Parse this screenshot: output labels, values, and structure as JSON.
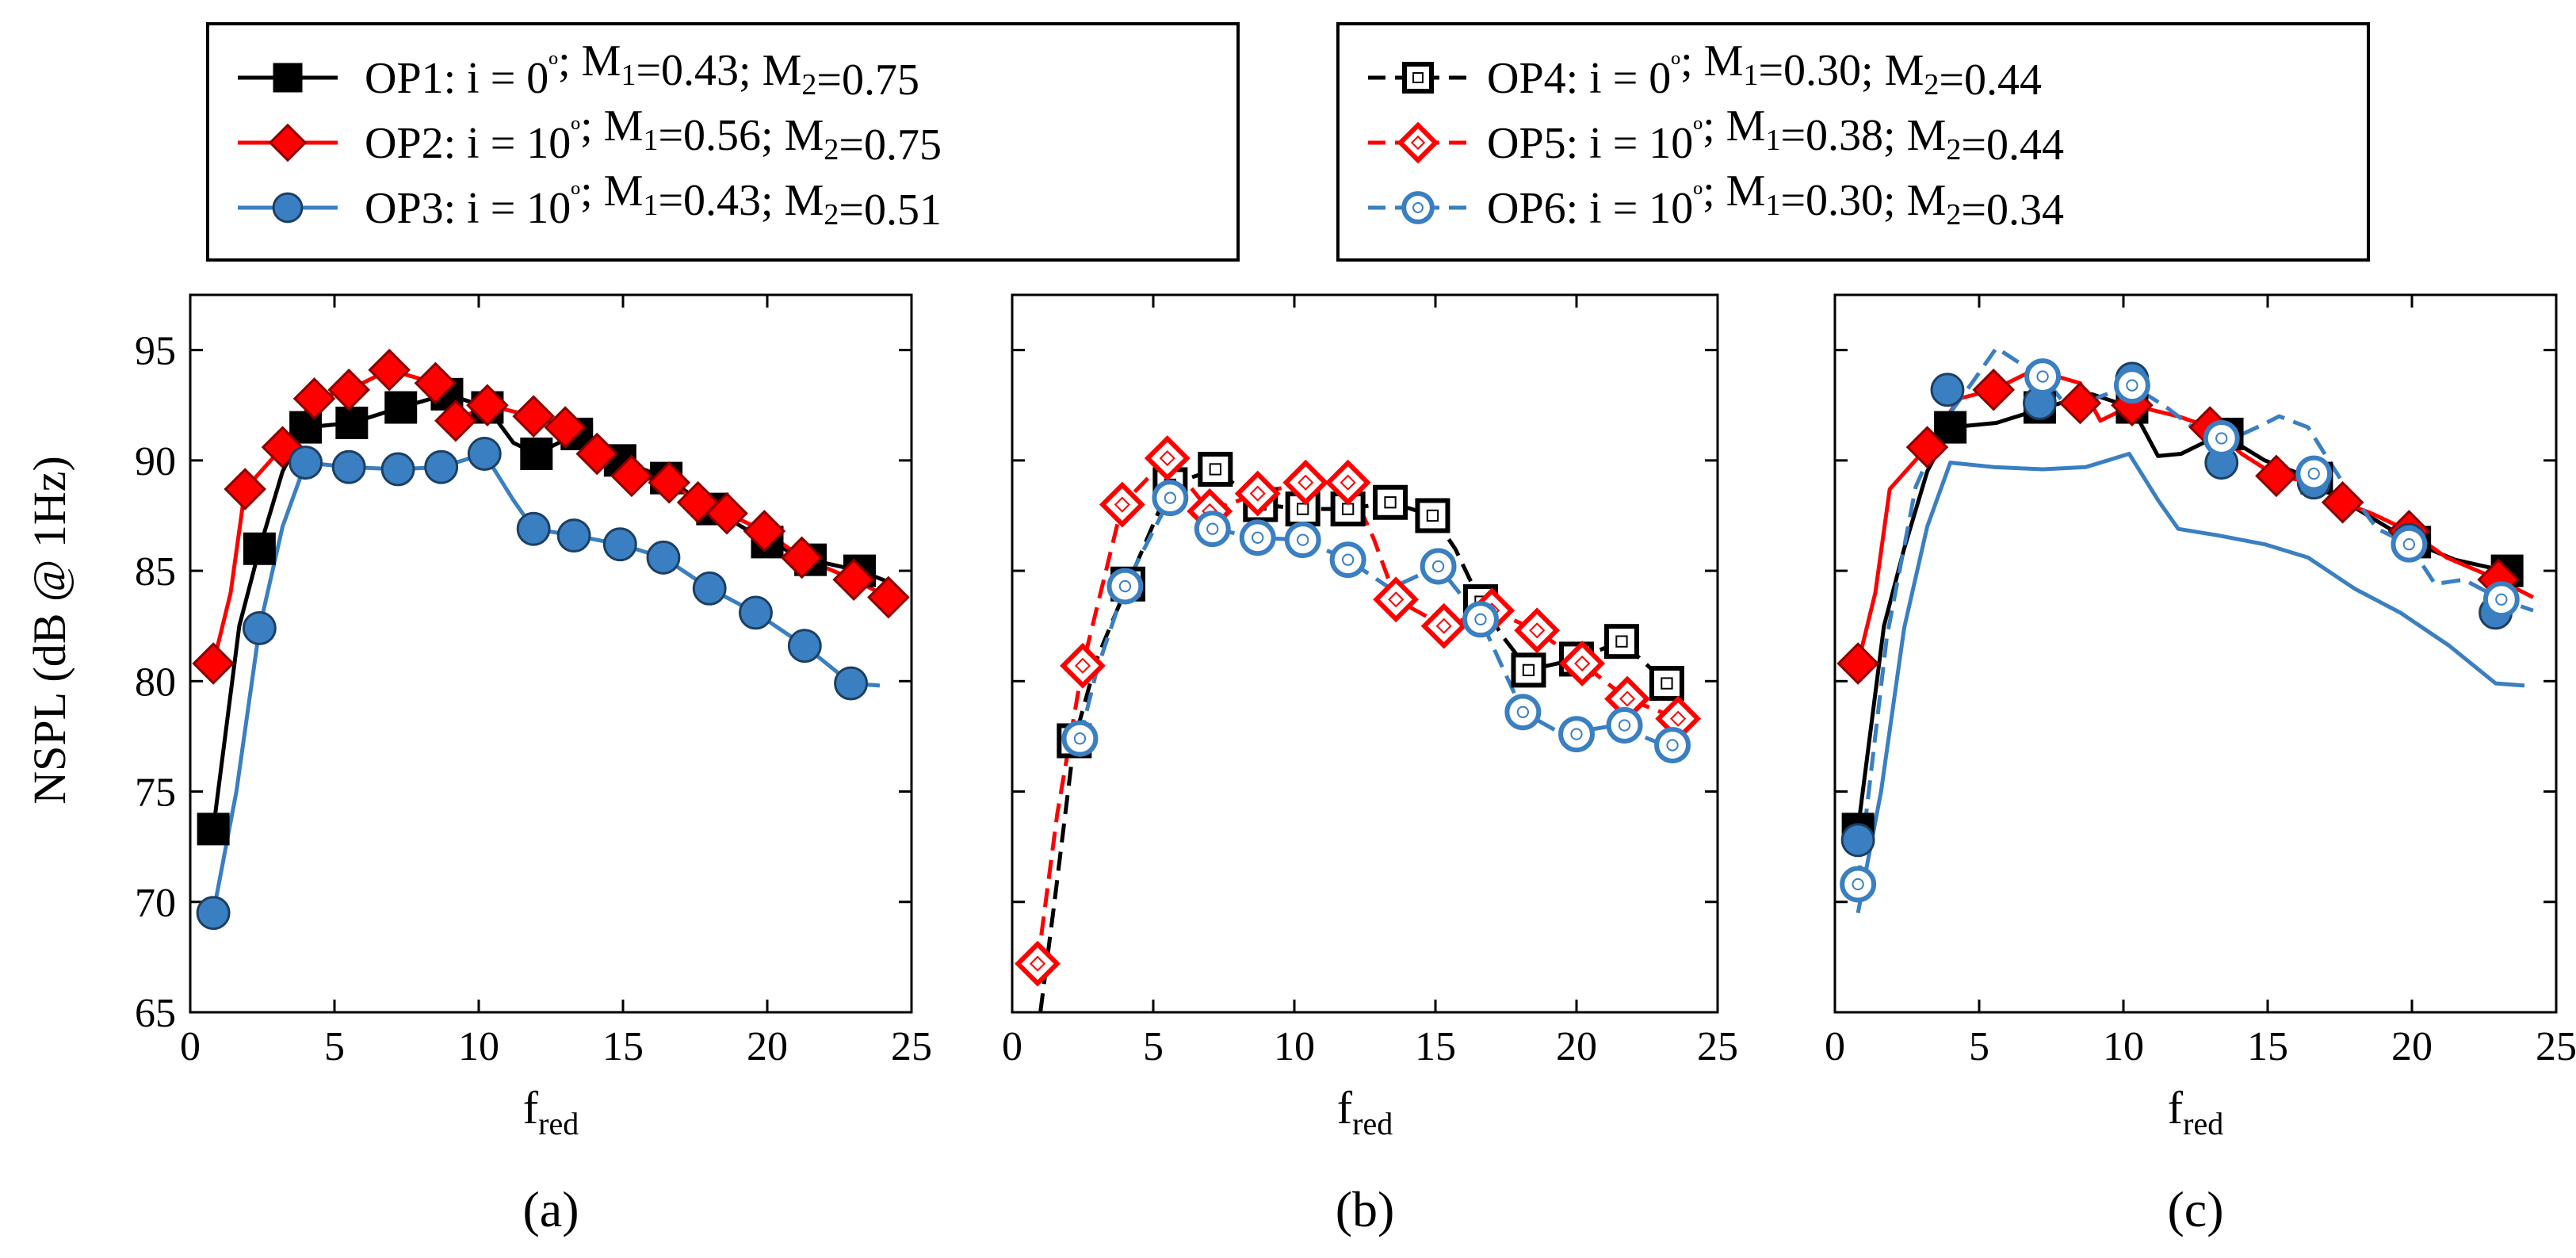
{
  "figure": {
    "ylabel": "NSPL (dB @ 1Hz)",
    "xlabel_main": "f",
    "xlabel_sub": "red"
  },
  "legends": [
    {
      "name": "left",
      "entries": [
        {
          "series_id": "OP1",
          "label": "OP1: i =  0º;  M1=0.43; M2=0.75",
          "parts": [
            {
              "t": "OP1: i =  0"
            },
            {
              "t": "º",
              "sup": true
            },
            {
              "t": ";  M"
            },
            {
              "t": "1",
              "sub": true
            },
            {
              "t": "=0.43; M"
            },
            {
              "t": "2",
              "sub": true
            },
            {
              "t": "=0.75"
            }
          ]
        },
        {
          "series_id": "OP2",
          "label": "OP2: i = 10º; M1=0.56; M2=0.75",
          "parts": [
            {
              "t": "OP2: i = 10"
            },
            {
              "t": "º",
              "sup": true
            },
            {
              "t": "; M"
            },
            {
              "t": "1",
              "sub": true
            },
            {
              "t": "=0.56; M"
            },
            {
              "t": "2",
              "sub": true
            },
            {
              "t": "=0.75"
            }
          ]
        },
        {
          "series_id": "OP3",
          "label": "OP3: i = 10º; M1=0.43; M2=0.51",
          "parts": [
            {
              "t": "OP3: i = 10"
            },
            {
              "t": "º",
              "sup": true
            },
            {
              "t": "; M"
            },
            {
              "t": "1",
              "sub": true
            },
            {
              "t": "=0.43; M"
            },
            {
              "t": "2",
              "sub": true
            },
            {
              "t": "=0.51"
            }
          ]
        }
      ]
    },
    {
      "name": "right",
      "entries": [
        {
          "series_id": "OP4",
          "label": "OP4: i =  0º;  M1=0.30; M2=0.44",
          "parts": [
            {
              "t": "OP4: i =  0"
            },
            {
              "t": "º",
              "sup": true
            },
            {
              "t": ";  M"
            },
            {
              "t": "1",
              "sub": true
            },
            {
              "t": "=0.30; M"
            },
            {
              "t": "2",
              "sub": true
            },
            {
              "t": "=0.44"
            }
          ]
        },
        {
          "series_id": "OP5",
          "label": "OP5: i =  10º; M1=0.38; M2=0.44",
          "parts": [
            {
              "t": "OP5: i =  10"
            },
            {
              "t": "º",
              "sup": true
            },
            {
              "t": "; M"
            },
            {
              "t": "1",
              "sub": true
            },
            {
              "t": "=0.38; M"
            },
            {
              "t": "2",
              "sub": true
            },
            {
              "t": "=0.44"
            }
          ]
        },
        {
          "series_id": "OP6",
          "label": "OP6: i =  10º; M1=0.30; M2=0.34",
          "parts": [
            {
              "t": "OP6: i =  10"
            },
            {
              "t": "º",
              "sup": true
            },
            {
              "t": "; M"
            },
            {
              "t": "1",
              "sub": true
            },
            {
              "t": "=0.30; M"
            },
            {
              "t": "2",
              "sub": true
            },
            {
              "t": "=0.34"
            }
          ]
        }
      ]
    }
  ],
  "series_styles": {
    "OP1": {
      "color": "#000000",
      "marker": "square",
      "filled": true,
      "dashed": false
    },
    "OP2": {
      "color": "#ff0000",
      "marker": "diamond",
      "filled": true,
      "dashed": false
    },
    "OP3": {
      "color": "#3a7fc1",
      "marker": "circle",
      "filled": true,
      "dashed": false
    },
    "OP4": {
      "color": "#000000",
      "marker": "square",
      "filled": false,
      "dashed": true
    },
    "OP5": {
      "color": "#ff0000",
      "marker": "diamond",
      "filled": false,
      "dashed": true
    },
    "OP6": {
      "color": "#3a7fc1",
      "marker": "circle",
      "filled": false,
      "dashed": true
    }
  },
  "chart_data": [
    {
      "type": "line",
      "panel_label": "(a)",
      "xlabel": "fred",
      "ylabel": "NSPL (dB @ 1Hz)",
      "xlim": [
        0,
        25
      ],
      "ylim": [
        65,
        97.5
      ],
      "xticks": [
        0,
        5,
        10,
        15,
        20,
        25
      ],
      "yticks": [
        65,
        70,
        75,
        80,
        85,
        90,
        95
      ],
      "grid": false,
      "series": [
        {
          "id": "OP1",
          "name": "OP1",
          "line_x": [
            0.8,
            1.7,
            2.4,
            3.2,
            4.0,
            5.6,
            7.3,
            8.9,
            10.3,
            11.2,
            12.0,
            13.4,
            14.9,
            16.5,
            18.1,
            20.0,
            21.5,
            23.2,
            24.2
          ],
          "line_y": [
            73.3,
            82.5,
            86.0,
            89.5,
            91.5,
            91.7,
            92.4,
            93.0,
            92.4,
            90.8,
            90.3,
            91.2,
            90.0,
            89.2,
            87.8,
            86.3,
            85.5,
            85.0,
            84.5
          ],
          "marker_x": [
            0.8,
            2.4,
            4.0,
            5.6,
            7.3,
            8.9,
            10.3,
            12.0,
            13.4,
            14.9,
            16.5,
            18.1,
            20.0,
            21.5,
            23.2
          ],
          "marker_y": [
            73.3,
            86.0,
            91.5,
            91.7,
            92.4,
            93.0,
            92.4,
            90.3,
            91.2,
            90.0,
            89.2,
            87.8,
            86.3,
            85.5,
            85.0
          ]
        },
        {
          "id": "OP2",
          "name": "OP2",
          "line_x": [
            0.8,
            1.4,
            1.9,
            3.2,
            4.3,
            5.5,
            6.9,
            8.5,
            9.2,
            10.3,
            11.9,
            13.0,
            14.1,
            15.3,
            16.6,
            17.6,
            18.6,
            19.9,
            21.2,
            23.0,
            24.2
          ],
          "line_y": [
            80.8,
            84.0,
            88.7,
            90.6,
            92.8,
            93.2,
            94.1,
            93.5,
            91.8,
            92.5,
            92.0,
            91.5,
            90.3,
            89.3,
            89.0,
            88.1,
            87.6,
            86.8,
            85.6,
            84.6,
            83.8
          ],
          "marker_x": [
            0.8,
            1.9,
            3.2,
            4.3,
            5.5,
            6.9,
            8.5,
            9.2,
            10.3,
            11.9,
            13.0,
            14.1,
            15.3,
            16.6,
            17.6,
            18.6,
            19.9,
            21.2,
            23.0,
            24.2
          ],
          "marker_y": [
            80.8,
            88.7,
            90.6,
            92.8,
            93.2,
            94.1,
            93.5,
            91.8,
            92.5,
            92.0,
            91.5,
            90.3,
            89.3,
            89.0,
            88.1,
            87.6,
            86.8,
            85.6,
            84.6,
            83.8
          ]
        },
        {
          "id": "OP3",
          "name": "OP3",
          "line_x": [
            0.8,
            1.6,
            2.4,
            3.2,
            4.0,
            5.5,
            7.2,
            8.7,
            10.2,
            11.2,
            11.9,
            13.3,
            14.9,
            16.4,
            18.0,
            19.6,
            21.3,
            22.9,
            23.9
          ],
          "line_y": [
            69.5,
            75.0,
            82.4,
            87.0,
            89.9,
            89.7,
            89.6,
            89.7,
            90.3,
            88.2,
            86.9,
            86.6,
            86.2,
            85.6,
            84.2,
            83.1,
            81.6,
            79.9,
            79.8
          ],
          "marker_x": [
            0.8,
            2.4,
            4.0,
            5.5,
            7.2,
            8.7,
            10.2,
            11.9,
            13.3,
            14.9,
            16.4,
            18.0,
            19.6,
            21.3,
            22.9
          ],
          "marker_y": [
            69.5,
            82.4,
            89.9,
            89.7,
            89.6,
            89.7,
            90.3,
            86.9,
            86.6,
            86.2,
            85.6,
            84.2,
            83.1,
            81.6,
            79.9
          ]
        }
      ]
    },
    {
      "type": "line",
      "panel_label": "(b)",
      "xlabel": "fred",
      "ylabel": "",
      "xlim": [
        0,
        25
      ],
      "ylim": [
        65,
        97.5
      ],
      "xticks": [
        0,
        5,
        10,
        15,
        20,
        25
      ],
      "yticks": [
        65,
        70,
        75,
        80,
        85,
        90,
        95
      ],
      "grid": false,
      "series": [
        {
          "id": "OP4",
          "name": "OP4",
          "line_x": [
            1.0,
            1.5,
            2.2,
            3.0,
            4.1,
            5.6,
            7.2,
            8.8,
            10.3,
            11.9,
            13.4,
            14.9,
            15.7,
            16.6,
            17.4,
            18.3,
            20.0,
            21.6,
            23.2,
            23.6
          ],
          "line_y": [
            65.0,
            70.0,
            77.3,
            81.0,
            84.4,
            88.9,
            89.6,
            88.0,
            87.8,
            87.8,
            88.1,
            87.5,
            86.0,
            83.6,
            82.0,
            80.5,
            81.0,
            81.8,
            79.9,
            79.5
          ],
          "marker_x": [
            2.2,
            4.1,
            5.6,
            7.2,
            8.8,
            10.3,
            11.9,
            13.4,
            14.9,
            16.6,
            18.3,
            20.0,
            21.6,
            23.2
          ],
          "marker_y": [
            77.3,
            84.4,
            88.9,
            89.6,
            88.0,
            87.8,
            87.8,
            88.1,
            87.5,
            83.6,
            80.5,
            81.0,
            81.8,
            79.9
          ]
        },
        {
          "id": "OP5",
          "name": "OP5",
          "line_x": [
            0.9,
            1.6,
            2.5,
            3.9,
            5.5,
            7.0,
            8.7,
            10.4,
            11.9,
            12.8,
            13.6,
            15.3,
            17.0,
            18.6,
            20.2,
            21.8,
            23.6,
            24.1
          ],
          "line_y": [
            67.2,
            74.0,
            80.7,
            88.0,
            90.1,
            87.7,
            88.5,
            89.0,
            89.0,
            86.5,
            83.7,
            82.5,
            83.2,
            82.3,
            80.8,
            79.2,
            78.3,
            78.0
          ],
          "marker_x": [
            0.9,
            2.5,
            3.9,
            5.5,
            7.0,
            8.7,
            10.4,
            11.9,
            13.6,
            15.3,
            17.0,
            18.6,
            20.2,
            21.8,
            23.6
          ],
          "marker_y": [
            67.2,
            80.7,
            88.0,
            90.1,
            87.7,
            88.5,
            89.0,
            89.0,
            83.7,
            82.5,
            83.2,
            82.3,
            80.8,
            79.2,
            78.3
          ]
        },
        {
          "id": "OP6",
          "name": "OP6",
          "line_x": [
            2.4,
            3.0,
            4.0,
            5.6,
            7.1,
            8.7,
            10.3,
            11.9,
            13.4,
            15.1,
            16.6,
            18.1,
            19.5,
            21.4,
            23.1,
            23.8
          ],
          "line_y": [
            77.4,
            80.5,
            84.3,
            88.3,
            86.9,
            86.5,
            86.4,
            85.5,
            84.2,
            85.2,
            82.8,
            78.6,
            77.6,
            78.0,
            77.1,
            76.9
          ],
          "marker_x": [
            2.4,
            4.0,
            5.6,
            7.1,
            8.7,
            10.3,
            11.9,
            15.1,
            16.6,
            18.1,
            20.0,
            21.7,
            23.4
          ],
          "marker_y": [
            77.4,
            84.3,
            88.3,
            86.9,
            86.5,
            86.4,
            85.5,
            85.2,
            82.8,
            78.6,
            77.6,
            78.0,
            77.1
          ]
        }
      ]
    },
    {
      "type": "line",
      "panel_label": "(c)",
      "xlabel": "fred",
      "ylabel": "",
      "xlim": [
        0,
        25
      ],
      "ylim": [
        65,
        97.5
      ],
      "xticks": [
        0,
        5,
        10,
        15,
        20,
        25
      ],
      "yticks": [
        65,
        70,
        75,
        80,
        85,
        90,
        95
      ],
      "grid": false,
      "series": [
        {
          "id": "OP1",
          "name": "OP1",
          "line_x": [
            0.8,
            1.7,
            2.4,
            3.2,
            4.0,
            5.6,
            7.3,
            8.9,
            10.3,
            11.2,
            12.0,
            13.4,
            14.9,
            16.5,
            18.1,
            20.0,
            21.5,
            23.2
          ],
          "line_y": [
            73.3,
            82.5,
            86.0,
            89.5,
            91.5,
            91.7,
            92.4,
            93.0,
            92.4,
            90.2,
            90.3,
            91.2,
            90.0,
            89.2,
            87.8,
            86.3,
            85.5,
            85.0
          ],
          "marker_x": [
            0.8,
            4.0,
            7.1,
            10.3,
            13.6,
            16.7,
            20.1,
            23.3
          ],
          "marker_y": [
            73.3,
            91.5,
            92.4,
            92.4,
            91.2,
            89.2,
            86.3,
            85.0
          ]
        },
        {
          "id": "OP2",
          "name": "OP2",
          "line_x": [
            0.8,
            1.4,
            1.9,
            3.2,
            4.3,
            5.5,
            6.9,
            8.5,
            9.2,
            10.3,
            11.9,
            13.0,
            14.1,
            15.3,
            16.6,
            17.6,
            18.6,
            19.9,
            21.2,
            23.0,
            24.2
          ],
          "line_y": [
            80.8,
            84.0,
            88.7,
            90.6,
            92.8,
            93.2,
            94.1,
            93.5,
            91.8,
            92.5,
            92.0,
            91.5,
            90.3,
            89.3,
            89.0,
            88.1,
            87.6,
            86.8,
            85.6,
            84.6,
            83.8
          ],
          "marker_x": [
            0.8,
            3.2,
            5.5,
            8.5,
            10.3,
            13.0,
            15.3,
            17.6,
            19.9,
            23.0
          ],
          "marker_y": [
            80.8,
            90.6,
            93.2,
            92.6,
            92.5,
            91.5,
            89.3,
            88.1,
            86.8,
            84.6
          ]
        },
        {
          "id": "OP3",
          "name": "OP3",
          "line_x": [
            0.8,
            1.6,
            2.4,
            3.2,
            4.0,
            5.5,
            7.2,
            8.7,
            10.2,
            11.2,
            11.9,
            13.3,
            14.9,
            16.4,
            18.0,
            19.6,
            21.3,
            22.9,
            23.9
          ],
          "line_y": [
            69.5,
            75.0,
            82.4,
            87.0,
            89.9,
            89.7,
            89.6,
            89.7,
            90.3,
            88.2,
            86.9,
            86.6,
            86.2,
            85.6,
            84.2,
            83.1,
            81.6,
            79.9,
            79.8
          ],
          "marker_x": [
            0.8,
            3.9,
            7.1,
            10.3,
            13.4,
            16.6,
            19.9,
            22.9
          ],
          "marker_y": [
            72.8,
            93.2,
            92.6,
            93.7,
            89.9,
            89.0,
            86.4,
            83.1
          ]
        },
        {
          "id": "OP6",
          "name": "OP6",
          "line_x": [
            0.8,
            1.8,
            2.8,
            3.8,
            4.8,
            5.6,
            6.3,
            7.2,
            8.2,
            9.2,
            10.3,
            11.5,
            12.8,
            13.8,
            14.8,
            15.4,
            16.4,
            17.6,
            18.8,
            19.9,
            20.8,
            21.8,
            23.1,
            24.2
          ],
          "line_y": [
            70.8,
            82.0,
            88.8,
            91.8,
            93.6,
            95.1,
            94.5,
            93.8,
            92.2,
            92.9,
            93.4,
            92.4,
            91.1,
            91.0,
            91.6,
            92.0,
            91.5,
            89.0,
            86.9,
            86.2,
            84.4,
            84.6,
            83.7,
            83.2
          ],
          "marker_x": [
            0.8,
            7.2,
            10.3,
            13.4,
            16.6,
            19.9,
            23.1
          ],
          "marker_y": [
            70.8,
            93.8,
            93.4,
            91.0,
            89.4,
            86.2,
            83.7
          ]
        }
      ]
    }
  ]
}
